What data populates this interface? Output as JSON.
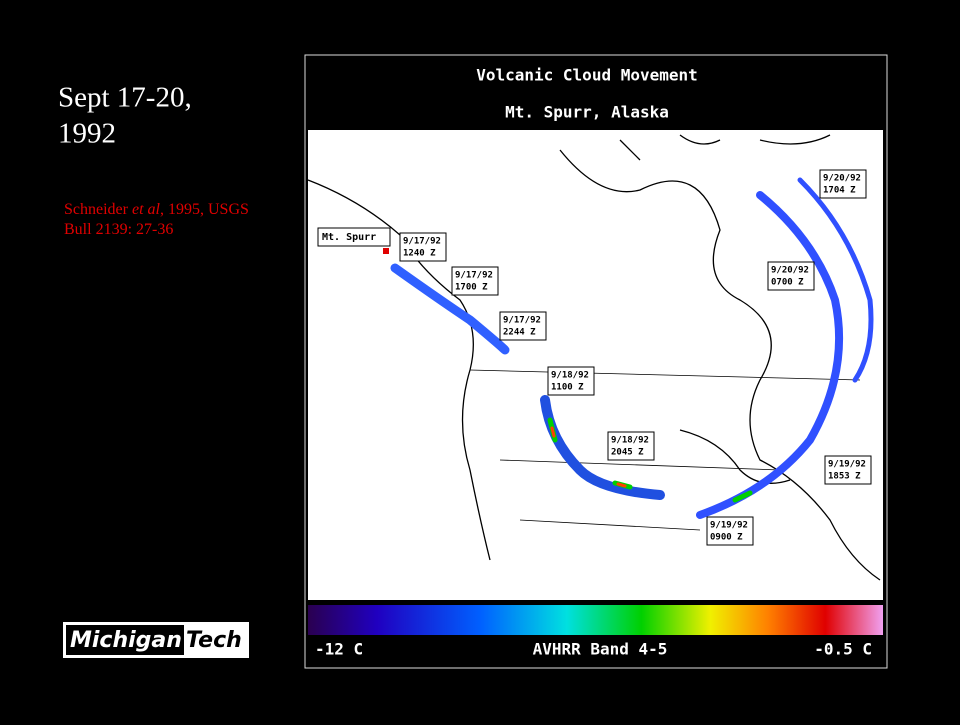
{
  "slide": {
    "title_lines": [
      "Sept 17-20,",
      "1992"
    ],
    "citation": {
      "author": "Schneider ",
      "etal": "et al",
      "rest": ", 1995, USGS Bull 2139: 27-36"
    },
    "logo": {
      "part1": "Michigan",
      "part2": "Tech"
    }
  },
  "figure": {
    "title": "Volcanic Cloud Movement",
    "subtitle": "Mt. Spurr, Alaska",
    "volcano_label": "Mt. Spurr",
    "annotations": [
      {
        "date": "9/17/92",
        "time": "1240 Z"
      },
      {
        "date": "9/17/92",
        "time": "1700 Z"
      },
      {
        "date": "9/17/92",
        "time": "2244 Z"
      },
      {
        "date": "9/18/92",
        "time": "1100 Z"
      },
      {
        "date": "9/18/92",
        "time": "2045 Z"
      },
      {
        "date": "9/19/92",
        "time": "0900 Z"
      },
      {
        "date": "9/19/92",
        "time": "1853 Z"
      },
      {
        "date": "9/20/92",
        "time": "0700 Z"
      },
      {
        "date": "9/20/92",
        "time": "1704 Z"
      }
    ],
    "colorbar": {
      "min_label": "-12 C",
      "center_label": "AVHRR Band 4-5",
      "max_label": "-0.5 C"
    }
  }
}
